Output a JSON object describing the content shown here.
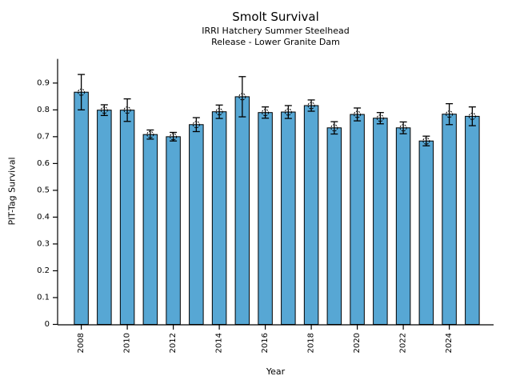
{
  "page": {
    "title": "Smolt Survival",
    "subtitle_line1": "IRRI Hatchery Summer Steelhead",
    "subtitle_line2": "Release - Lower Granite Dam"
  },
  "chart_data": {
    "type": "bar",
    "title": "Smolt Survival",
    "subtitle": [
      "IRRI Hatchery Summer Steelhead",
      "Release - Lower Granite Dam"
    ],
    "xlabel": "Year",
    "ylabel": "PIT-Tag Survival",
    "categories": [
      2008,
      2009,
      2010,
      2011,
      2012,
      2013,
      2014,
      2015,
      2016,
      2017,
      2018,
      2019,
      2020,
      2021,
      2022,
      2023,
      2024,
      2025
    ],
    "values": [
      0.866,
      0.799,
      0.799,
      0.708,
      0.7,
      0.745,
      0.793,
      0.849,
      0.79,
      0.792,
      0.816,
      0.733,
      0.783,
      0.769,
      0.733,
      0.684,
      0.784,
      0.776
    ],
    "error_bars": [
      0.066,
      0.02,
      0.042,
      0.017,
      0.016,
      0.026,
      0.025,
      0.075,
      0.021,
      0.024,
      0.021,
      0.023,
      0.024,
      0.021,
      0.022,
      0.018,
      0.039,
      0.035
    ],
    "yticks": [
      0,
      0.1,
      0.2,
      0.3,
      0.4,
      0.5,
      0.6,
      0.7,
      0.8,
      0.9
    ],
    "ytick_labels": [
      "0",
      "0.1",
      "0.2",
      "0.3",
      "0.4",
      "0.5",
      "0.6",
      "0.7",
      "0.8",
      "0.9"
    ],
    "xtick_labels": [
      "2008",
      "2010",
      "2012",
      "2014",
      "2016",
      "2018",
      "2020",
      "2022",
      "2024"
    ],
    "ylim": [
      0,
      0.99
    ],
    "grid": false,
    "legend": null,
    "bar_color": "#57a7d4",
    "bar_edge_color": "#000000",
    "error_color": "#000000",
    "marker": "open-circle-dashed"
  }
}
